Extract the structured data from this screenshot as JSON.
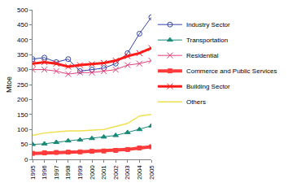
{
  "chart_data": {
    "type": "line",
    "y_label": "Mtoe",
    "x": [
      1995,
      1996,
      1997,
      1998,
      1999,
      2000,
      2001,
      2002,
      2003,
      2004,
      2005
    ],
    "xlim": [
      1995,
      2005
    ],
    "xticks": [
      1995,
      1996,
      1997,
      1998,
      1999,
      2000,
      2001,
      2002,
      2003,
      2004,
      2005
    ],
    "ylim": [
      0,
      500
    ],
    "yticks": [
      0,
      50,
      100,
      150,
      200,
      250,
      300,
      350,
      400,
      450,
      500
    ],
    "grid": false,
    "legend": "right",
    "series": [
      {
        "name": "Industry Sector",
        "color": "#3344aa",
        "marker": "circle-open",
        "line_style": "solid",
        "values": [
          335,
          340,
          325,
          335,
          295,
          300,
          305,
          320,
          355,
          420,
          475
        ]
      },
      {
        "name": "Transportation",
        "color": "#1a8a78",
        "marker": "triangle",
        "line_style": "solid",
        "values": [
          50,
          52,
          57,
          62,
          65,
          70,
          75,
          80,
          90,
          100,
          112
        ]
      },
      {
        "name": "Residential",
        "color": "#e0407a",
        "marker": "x",
        "line_style": "solid",
        "values": [
          300,
          300,
          295,
          285,
          290,
          290,
          295,
          300,
          315,
          320,
          330
        ]
      },
      {
        "name": "Commerce and Public Services",
        "color": "#ff3b3b",
        "marker": "square",
        "line_style": "solid",
        "values": [
          20,
          22,
          23,
          24,
          25,
          27,
          28,
          30,
          33,
          38,
          42
        ]
      },
      {
        "name": "Building Sector",
        "color": "#ff1a1a",
        "marker": "x",
        "line_style": "solid",
        "values": [
          320,
          325,
          320,
          310,
          315,
          318,
          322,
          330,
          345,
          355,
          372
        ]
      },
      {
        "name": "Others",
        "color": "#f0e050",
        "marker": "none",
        "line_style": "solid",
        "values": [
          80,
          88,
          92,
          95,
          95,
          97,
          100,
          110,
          120,
          145,
          150
        ]
      }
    ]
  }
}
